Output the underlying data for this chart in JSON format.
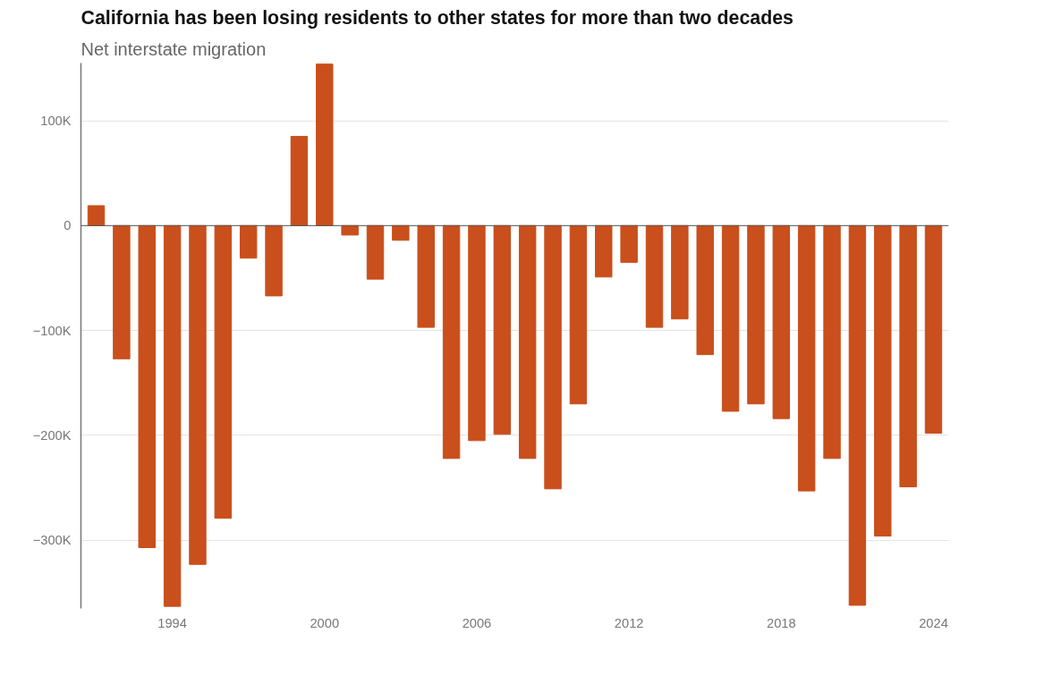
{
  "chart_data": {
    "type": "bar",
    "title": "California has been losing residents to other states for more than two decades",
    "subtitle": "Net interstate migration",
    "x": [
      1991,
      1992,
      1993,
      1994,
      1995,
      1996,
      1997,
      1998,
      1999,
      2000,
      2001,
      2002,
      2003,
      2004,
      2005,
      2006,
      2007,
      2008,
      2009,
      2010,
      2011,
      2012,
      2013,
      2014,
      2015,
      2016,
      2017,
      2018,
      2019,
      2020,
      2021,
      2022,
      2023,
      2024
    ],
    "values": [
      19000,
      -127000,
      -307000,
      -363000,
      -323000,
      -279000,
      -31000,
      -67000,
      85000,
      154000,
      -9000,
      -51000,
      -14000,
      -97000,
      -222000,
      -205000,
      -199000,
      -222000,
      -251000,
      -170000,
      -49000,
      -35000,
      -97000,
      -89000,
      -123000,
      -177000,
      -170000,
      -184000,
      -253000,
      -222000,
      -362000,
      -296000,
      -249000,
      -198000
    ],
    "color": "#c94f1c",
    "xlim": [
      1990.4,
      2024.6
    ],
    "xticks": [
      1994,
      2000,
      2006,
      2012,
      2018,
      2024
    ],
    "ylim": [
      -365000,
      155000
    ],
    "yticks": [
      {
        "value": -300000,
        "label": "−300K"
      },
      {
        "value": -200000,
        "label": "−200K"
      },
      {
        "value": -100000,
        "label": "−100K"
      },
      0,
      {
        "value": 100000,
        "label": "100K"
      }
    ],
    "grid": "y"
  }
}
